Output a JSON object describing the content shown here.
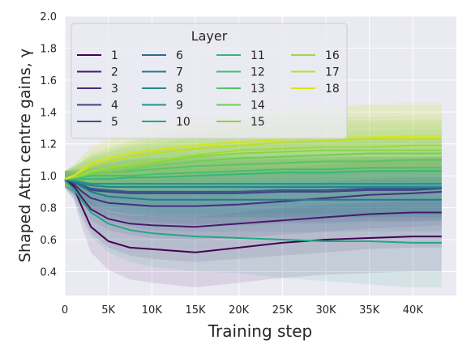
{
  "chart_data": {
    "type": "line",
    "title": "",
    "xlabel": "Training step",
    "ylabel": "Shaped Attn centre gains, γ",
    "xlim": [
      0,
      45000
    ],
    "ylim": [
      0.25,
      2.0
    ],
    "x_ticks": [
      0,
      5000,
      10000,
      15000,
      20000,
      25000,
      30000,
      35000,
      40000
    ],
    "x_tick_labels": [
      "0",
      "5K",
      "10K",
      "15K",
      "20K",
      "25K",
      "30K",
      "35K",
      "40K"
    ],
    "y_ticks": [
      0.4,
      0.6,
      0.8,
      1.0,
      1.2,
      1.4,
      1.6,
      1.8,
      2.0
    ],
    "y_tick_labels": [
      "0.4",
      "0.6",
      "0.8",
      "1.0",
      "1.2",
      "1.4",
      "1.6",
      "1.8",
      "2.0"
    ],
    "grid": true,
    "background": "#eaeaf2",
    "legend": {
      "title": "Layer",
      "placement": "top-left",
      "columns": 4
    },
    "x": [
      0,
      1000,
      2000,
      3000,
      5000,
      7500,
      10000,
      15000,
      20000,
      25000,
      30000,
      35000,
      40000,
      43300
    ],
    "series": [
      {
        "name": "1",
        "color": "#440154",
        "values": [
          0.97,
          0.93,
          0.8,
          0.68,
          0.59,
          0.55,
          0.54,
          0.52,
          0.55,
          0.58,
          0.6,
          0.61,
          0.62,
          0.62
        ],
        "band": [
          0.05,
          0.07,
          0.13,
          0.16,
          0.18,
          0.2,
          0.21,
          0.22,
          0.22,
          0.22,
          0.22,
          0.22,
          0.22,
          0.22
        ]
      },
      {
        "name": "2",
        "color": "#481a6c",
        "values": [
          0.98,
          0.94,
          0.86,
          0.79,
          0.73,
          0.7,
          0.69,
          0.68,
          0.7,
          0.72,
          0.74,
          0.76,
          0.77,
          0.77
        ],
        "band": [
          0.05,
          0.07,
          0.12,
          0.15,
          0.18,
          0.2,
          0.21,
          0.22,
          0.22,
          0.22,
          0.22,
          0.22,
          0.22,
          0.22
        ]
      },
      {
        "name": "3",
        "color": "#472f7d",
        "values": [
          0.98,
          0.95,
          0.9,
          0.86,
          0.83,
          0.82,
          0.81,
          0.81,
          0.82,
          0.84,
          0.86,
          0.88,
          0.89,
          0.9
        ],
        "band": [
          0.05,
          0.07,
          0.11,
          0.14,
          0.17,
          0.19,
          0.2,
          0.21,
          0.21,
          0.21,
          0.21,
          0.21,
          0.21,
          0.21
        ]
      },
      {
        "name": "4",
        "color": "#414487",
        "values": [
          0.98,
          0.96,
          0.93,
          0.91,
          0.9,
          0.89,
          0.89,
          0.89,
          0.89,
          0.9,
          0.9,
          0.91,
          0.91,
          0.92
        ],
        "band": [
          0.05,
          0.07,
          0.1,
          0.13,
          0.16,
          0.18,
          0.19,
          0.2,
          0.2,
          0.2,
          0.2,
          0.2,
          0.2,
          0.2
        ]
      },
      {
        "name": "5",
        "color": "#39568c",
        "values": [
          0.98,
          0.96,
          0.94,
          0.92,
          0.91,
          0.9,
          0.9,
          0.9,
          0.9,
          0.91,
          0.91,
          0.92,
          0.92,
          0.92
        ],
        "band": [
          0.05,
          0.07,
          0.1,
          0.13,
          0.15,
          0.17,
          0.19,
          0.2,
          0.2,
          0.2,
          0.2,
          0.2,
          0.2,
          0.2
        ]
      },
      {
        "name": "6",
        "color": "#31688e",
        "values": [
          0.98,
          0.97,
          0.95,
          0.94,
          0.93,
          0.93,
          0.93,
          0.93,
          0.93,
          0.93,
          0.93,
          0.93,
          0.93,
          0.93
        ],
        "band": [
          0.05,
          0.07,
          0.09,
          0.12,
          0.15,
          0.17,
          0.18,
          0.19,
          0.19,
          0.19,
          0.19,
          0.19,
          0.19,
          0.19
        ]
      },
      {
        "name": "7",
        "color": "#2a788e",
        "values": [
          0.98,
          0.96,
          0.93,
          0.9,
          0.87,
          0.86,
          0.85,
          0.85,
          0.85,
          0.85,
          0.85,
          0.85,
          0.85,
          0.85
        ],
        "band": [
          0.05,
          0.07,
          0.1,
          0.13,
          0.16,
          0.18,
          0.19,
          0.2,
          0.2,
          0.2,
          0.2,
          0.2,
          0.2,
          0.2
        ]
      },
      {
        "name": "8",
        "color": "#23888e",
        "values": [
          0.98,
          0.97,
          0.95,
          0.94,
          0.93,
          0.93,
          0.93,
          0.93,
          0.93,
          0.93,
          0.93,
          0.93,
          0.93,
          0.93
        ],
        "band": [
          0.05,
          0.07,
          0.09,
          0.12,
          0.15,
          0.17,
          0.18,
          0.19,
          0.19,
          0.19,
          0.19,
          0.19,
          0.19,
          0.19
        ]
      },
      {
        "name": "9",
        "color": "#1f988b",
        "values": [
          0.98,
          0.97,
          0.96,
          0.95,
          0.95,
          0.95,
          0.95,
          0.95,
          0.95,
          0.95,
          0.95,
          0.95,
          0.95,
          0.95
        ],
        "band": [
          0.05,
          0.07,
          0.09,
          0.12,
          0.14,
          0.16,
          0.18,
          0.19,
          0.19,
          0.19,
          0.19,
          0.19,
          0.19,
          0.19
        ]
      },
      {
        "name": "10",
        "color": "#22a884",
        "values": [
          0.97,
          0.92,
          0.84,
          0.77,
          0.7,
          0.66,
          0.64,
          0.62,
          0.61,
          0.6,
          0.59,
          0.59,
          0.58,
          0.58
        ],
        "band": [
          0.05,
          0.07,
          0.12,
          0.15,
          0.18,
          0.2,
          0.21,
          0.22,
          0.22,
          0.24,
          0.25,
          0.27,
          0.28,
          0.28
        ]
      },
      {
        "name": "11",
        "color": "#35b779",
        "values": [
          0.98,
          0.98,
          0.98,
          0.98,
          0.98,
          0.99,
          0.99,
          1.0,
          1.01,
          1.02,
          1.02,
          1.03,
          1.03,
          1.03
        ],
        "band": [
          0.05,
          0.07,
          0.09,
          0.11,
          0.13,
          0.15,
          0.17,
          0.18,
          0.19,
          0.19,
          0.19,
          0.19,
          0.19,
          0.19
        ]
      },
      {
        "name": "12",
        "color": "#44bf70",
        "values": [
          0.98,
          0.98,
          0.99,
          1.0,
          1.0,
          1.0,
          1.01,
          1.02,
          1.03,
          1.04,
          1.04,
          1.05,
          1.05,
          1.05
        ],
        "band": [
          0.05,
          0.07,
          0.09,
          0.11,
          0.13,
          0.15,
          0.17,
          0.18,
          0.19,
          0.19,
          0.19,
          0.19,
          0.19,
          0.19
        ]
      },
      {
        "name": "13",
        "color": "#54c568",
        "values": [
          0.98,
          0.99,
          1.0,
          1.01,
          1.02,
          1.03,
          1.04,
          1.06,
          1.07,
          1.08,
          1.09,
          1.09,
          1.1,
          1.1
        ],
        "band": [
          0.05,
          0.07,
          0.09,
          0.11,
          0.13,
          0.15,
          0.16,
          0.18,
          0.19,
          0.19,
          0.19,
          0.19,
          0.19,
          0.19
        ]
      },
      {
        "name": "14",
        "color": "#6ece58",
        "values": [
          0.98,
          0.99,
          1.0,
          1.01,
          1.02,
          1.04,
          1.06,
          1.09,
          1.11,
          1.12,
          1.13,
          1.14,
          1.14,
          1.14
        ],
        "band": [
          0.05,
          0.07,
          0.09,
          0.11,
          0.13,
          0.15,
          0.16,
          0.18,
          0.19,
          0.19,
          0.19,
          0.19,
          0.19,
          0.19
        ]
      },
      {
        "name": "15",
        "color": "#86d549",
        "values": [
          0.98,
          0.99,
          1.0,
          1.02,
          1.04,
          1.06,
          1.08,
          1.12,
          1.14,
          1.15,
          1.16,
          1.16,
          1.16,
          1.16
        ],
        "band": [
          0.05,
          0.07,
          0.09,
          0.11,
          0.13,
          0.15,
          0.16,
          0.18,
          0.19,
          0.19,
          0.19,
          0.19,
          0.19,
          0.19
        ]
      },
      {
        "name": "16",
        "color": "#a0da39",
        "values": [
          0.98,
          0.99,
          1.01,
          1.03,
          1.05,
          1.07,
          1.09,
          1.13,
          1.16,
          1.17,
          1.18,
          1.18,
          1.19,
          1.19
        ],
        "band": [
          0.05,
          0.07,
          0.09,
          0.11,
          0.13,
          0.15,
          0.16,
          0.18,
          0.19,
          0.19,
          0.19,
          0.19,
          0.19,
          0.19
        ]
      },
      {
        "name": "17",
        "color": "#bddf26",
        "values": [
          0.98,
          1.0,
          1.03,
          1.06,
          1.09,
          1.12,
          1.14,
          1.17,
          1.19,
          1.21,
          1.22,
          1.23,
          1.23,
          1.23
        ],
        "band": [
          0.05,
          0.07,
          0.09,
          0.11,
          0.13,
          0.15,
          0.17,
          0.18,
          0.19,
          0.2,
          0.2,
          0.21,
          0.21,
          0.21
        ]
      },
      {
        "name": "18",
        "color": "#dae319",
        "values": [
          0.98,
          1.0,
          1.04,
          1.08,
          1.11,
          1.14,
          1.16,
          1.19,
          1.21,
          1.23,
          1.24,
          1.24,
          1.25,
          1.25
        ],
        "band": [
          0.05,
          0.07,
          0.09,
          0.11,
          0.13,
          0.15,
          0.17,
          0.18,
          0.19,
          0.2,
          0.2,
          0.21,
          0.21,
          0.21
        ]
      }
    ]
  }
}
